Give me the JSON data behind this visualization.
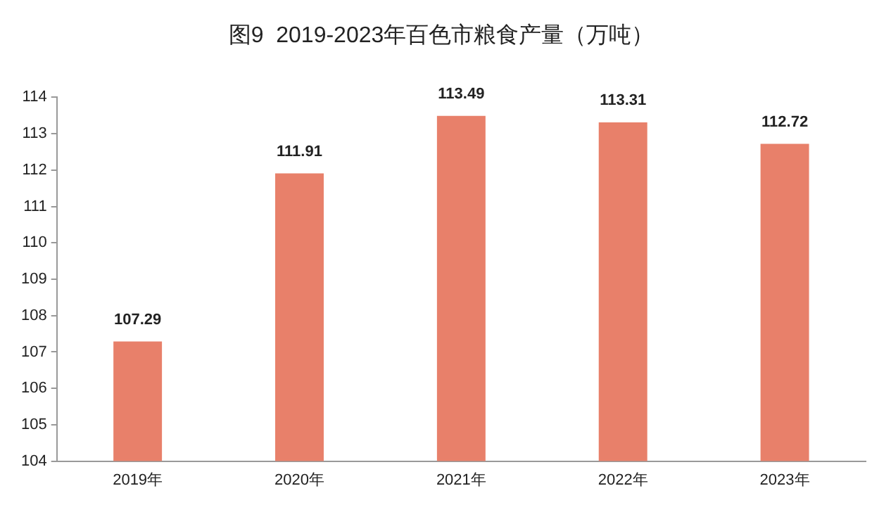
{
  "chart_data": {
    "type": "bar",
    "title": "图9  2019-2023年百色市粮食产量（万吨）",
    "categories": [
      "2019年",
      "2020年",
      "2021年",
      "2022年",
      "2023年"
    ],
    "values": [
      107.29,
      111.91,
      113.49,
      113.31,
      112.72
    ],
    "color": "#e8806a",
    "ylim": [
      104,
      114
    ],
    "yticks": [
      104,
      105,
      106,
      107,
      108,
      109,
      110,
      111,
      112,
      113,
      114
    ],
    "grid": false,
    "data_labels": true,
    "legend": false
  }
}
